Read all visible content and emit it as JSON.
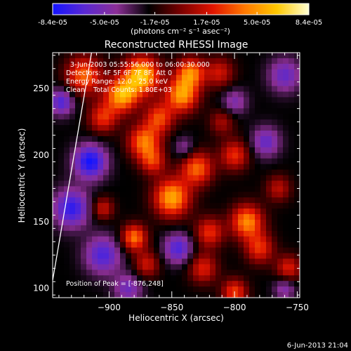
{
  "chart_data": {
    "type": "heatmap",
    "title": "Reconstructed RHESSI Image",
    "xlabel": "Heliocentric X (arcsec)",
    "ylabel": "Heliocentric Y (arcsec)",
    "xlim": [
      -945,
      -748
    ],
    "ylim": [
      93,
      277
    ],
    "xticks": [
      -900,
      -850,
      -800,
      -750
    ],
    "yticks": [
      100,
      150,
      200,
      250
    ],
    "colorbar": {
      "min": -8.4e-05,
      "max": 8.4e-05,
      "tick_values": [
        -8.4e-05,
        -5e-05,
        -1.7e-05,
        1.7e-05,
        5e-05,
        8.4e-05
      ],
      "tick_labels": [
        "-8.4e-05",
        "-5.0e-05",
        "-1.7e-05",
        "1.7e-05",
        "5.0e-05",
        "8.4e-05"
      ],
      "units_label": "(photons cm⁻² s⁻¹ asec⁻²)",
      "colors": [
        "#1414ff",
        "#5a28d2",
        "#8c2f96",
        "#000000",
        "#7a0000",
        "#e01400",
        "#ff7800",
        "#ffc800",
        "#ffffd2"
      ]
    },
    "annotations": {
      "time_range": "3-Jun-2003 05:55:56.000 to 06:00:30.000",
      "detectors": "Detectors: 4F 5F 6F 7F 8F, Att 0",
      "energy": "Energy Range: 12.0 - 25.0 keV",
      "clean": "Clean    Total Counts: 1.80E+03",
      "peak": "Position of Peak = [-876,248]"
    },
    "peak_position": [
      -876,
      248
    ],
    "limb_line": [
      [
        -945,
        106
      ],
      [
        -914,
        277
      ]
    ],
    "sources": [
      {
        "x": -874,
        "y": 260,
        "v": 1.0,
        "s": 10
      },
      {
        "x": -890,
        "y": 245,
        "v": 0.9,
        "s": 9
      },
      {
        "x": -920,
        "y": 260,
        "v": 0.7,
        "s": 10
      },
      {
        "x": -905,
        "y": 228,
        "v": 0.55,
        "s": 8
      },
      {
        "x": -872,
        "y": 210,
        "v": 0.75,
        "s": 9
      },
      {
        "x": -860,
        "y": 228,
        "v": 0.6,
        "s": 8
      },
      {
        "x": -842,
        "y": 245,
        "v": 0.85,
        "s": 9
      },
      {
        "x": -835,
        "y": 262,
        "v": 0.75,
        "s": 8
      },
      {
        "x": -812,
        "y": 262,
        "v": 0.45,
        "s": 8
      },
      {
        "x": -850,
        "y": 168,
        "v": 0.9,
        "s": 10
      },
      {
        "x": -830,
        "y": 190,
        "v": 0.7,
        "s": 9
      },
      {
        "x": -800,
        "y": 200,
        "v": 0.55,
        "s": 8
      },
      {
        "x": -810,
        "y": 225,
        "v": 0.35,
        "s": 7
      },
      {
        "x": -865,
        "y": 195,
        "v": 0.5,
        "s": 7
      },
      {
        "x": -880,
        "y": 138,
        "v": 0.75,
        "s": 7
      },
      {
        "x": -870,
        "y": 118,
        "v": 0.45,
        "s": 7
      },
      {
        "x": -790,
        "y": 150,
        "v": 0.8,
        "s": 9
      },
      {
        "x": -780,
        "y": 130,
        "v": 0.55,
        "s": 8
      },
      {
        "x": -820,
        "y": 142,
        "v": 0.55,
        "s": 8
      },
      {
        "x": -825,
        "y": 115,
        "v": 0.5,
        "s": 8
      },
      {
        "x": -800,
        "y": 97,
        "v": 0.6,
        "s": 7
      },
      {
        "x": -757,
        "y": 115,
        "v": 0.5,
        "s": 7
      },
      {
        "x": -765,
        "y": 175,
        "v": 0.4,
        "s": 7
      },
      {
        "x": -905,
        "y": 160,
        "v": 0.45,
        "s": 6
      },
      {
        "x": -915,
        "y": 195,
        "v": -0.75,
        "s": 9
      },
      {
        "x": -930,
        "y": 160,
        "v": -0.65,
        "s": 10
      },
      {
        "x": -905,
        "y": 125,
        "v": -0.55,
        "s": 10
      },
      {
        "x": -938,
        "y": 240,
        "v": -0.55,
        "s": 7
      },
      {
        "x": -760,
        "y": 260,
        "v": -0.45,
        "s": 9
      },
      {
        "x": -775,
        "y": 210,
        "v": -0.45,
        "s": 8
      },
      {
        "x": -800,
        "y": 240,
        "v": -0.35,
        "s": 7
      },
      {
        "x": -845,
        "y": 130,
        "v": -0.55,
        "s": 8
      },
      {
        "x": -885,
        "y": 100,
        "v": -0.4,
        "s": 8
      },
      {
        "x": -760,
        "y": 100,
        "v": -0.35,
        "s": 6
      },
      {
        "x": -840,
        "y": 205,
        "v": -0.3,
        "s": 6
      }
    ]
  }
}
